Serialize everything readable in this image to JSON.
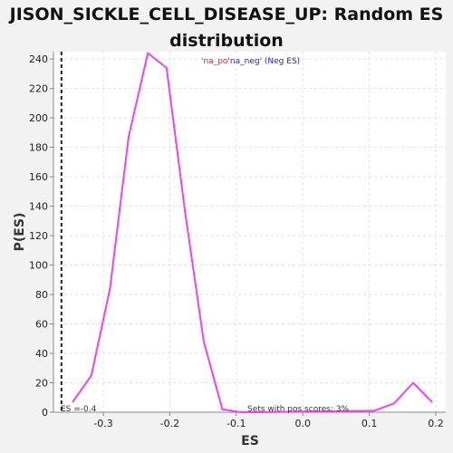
{
  "title_line1": "JISON_SICKLE_CELL_DISEASE_UP: Random ES",
  "title_line2": "distribution",
  "chart_data": {
    "type": "line",
    "xlabel": "ES",
    "ylabel": "P(ES)",
    "xlim": [
      -0.375,
      0.215
    ],
    "ylim": [
      0,
      245
    ],
    "xticks": [
      -0.3,
      -0.2,
      -0.1,
      0.0,
      0.1,
      0.2
    ],
    "xtick_labels": [
      "-0.3",
      "-0.2",
      "-0.1",
      "0.0",
      "0.1",
      "0.2"
    ],
    "yticks": [
      0,
      20,
      40,
      60,
      80,
      100,
      120,
      140,
      160,
      180,
      200,
      220,
      240
    ],
    "grid": true,
    "series": [
      {
        "color": "#ee44ee",
        "x": [
          -0.346,
          -0.318,
          -0.29,
          -0.262,
          -0.233,
          -0.205,
          -0.177,
          -0.149,
          -0.121,
          -0.093,
          -0.065,
          0.107,
          0.137,
          0.166,
          0.194
        ],
        "y": [
          7,
          25,
          84,
          187,
          244,
          234,
          136,
          48,
          2,
          0,
          0,
          1,
          6,
          20,
          7
        ]
      }
    ],
    "vline": {
      "x": -0.363,
      "label": "ES =-0.4"
    },
    "legend_pos": "'na_po",
    "legend_neg": "'na_neg' (Neg ES)",
    "legend_pos_color": "#dd2222",
    "legend_neg_color": "#2222dd",
    "annotation": "Sets with pos scores: 3%"
  }
}
